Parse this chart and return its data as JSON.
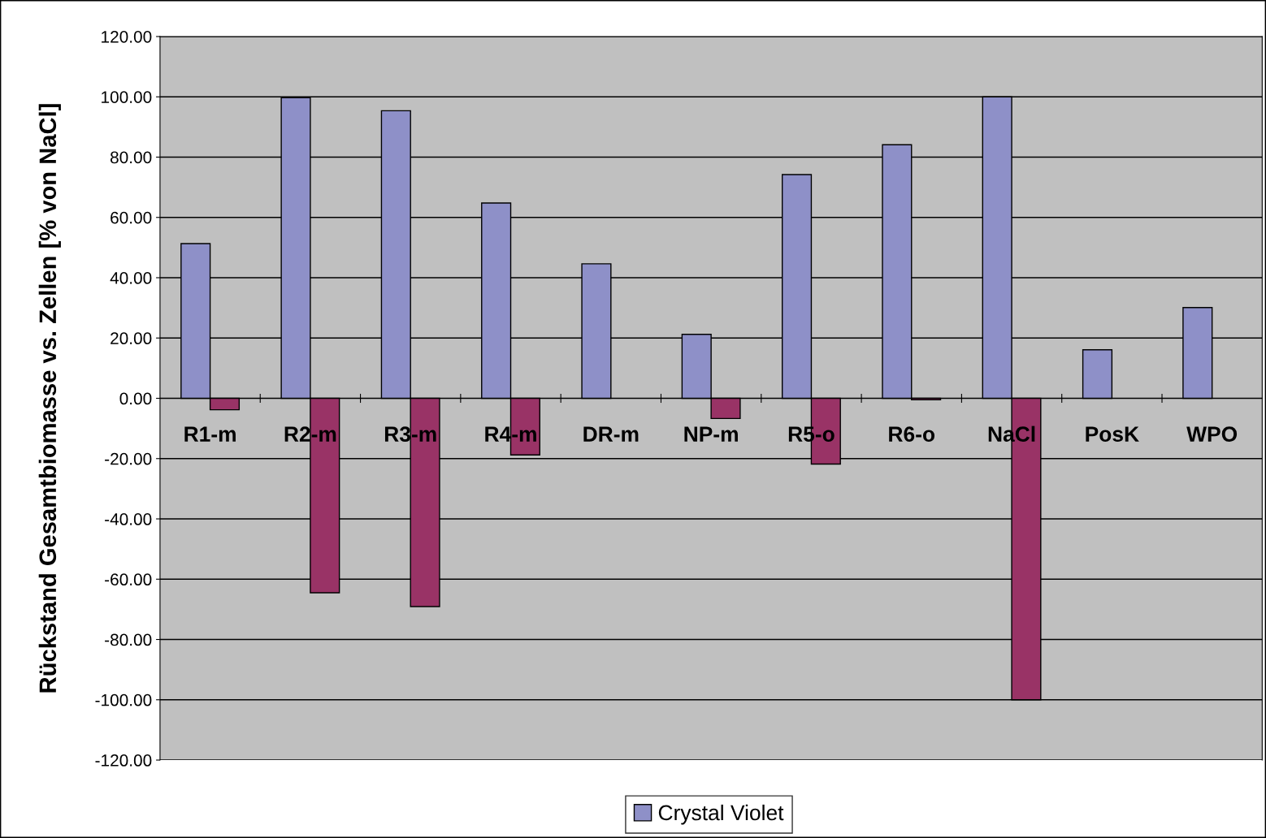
{
  "chart_data": {
    "type": "bar",
    "ylabel": "Rückstand Gesamtbiomasse vs. Zellen [% von NaCl]",
    "categories": [
      "R1-m",
      "R2-m",
      "R3-m",
      "R4-m",
      "DR-m",
      "NP-m",
      "R5-o",
      "R6-o",
      "NaCl",
      "PosK",
      "WPO"
    ],
    "series": [
      {
        "name": "Crystal Violet",
        "color": "#8e90c8",
        "values": [
          51.3,
          99.7,
          95.4,
          64.8,
          44.6,
          21.2,
          74.2,
          84.1,
          100,
          16.1,
          30.1
        ]
      },
      {
        "color": "#993366",
        "values": [
          -3.8,
          -64.5,
          -69.1,
          -18.8,
          null,
          -6.7,
          -21.8,
          -0.5,
          -100,
          null,
          null
        ]
      }
    ],
    "ylim": [
      -120,
      120
    ],
    "yticks": [
      {
        "value": -120,
        "label": "-120.00"
      },
      {
        "value": -100,
        "label": "-100.00"
      },
      {
        "value": -80,
        "label": "-80.00"
      },
      {
        "value": -60,
        "label": "-60.00"
      },
      {
        "value": -40,
        "label": "-40.00"
      },
      {
        "value": -20,
        "label": "-20.00"
      },
      {
        "value": 0,
        "label": "0.00"
      },
      {
        "value": 20,
        "label": "20.00"
      },
      {
        "value": 40,
        "label": "40.00"
      },
      {
        "value": 60,
        "label": "60.00"
      },
      {
        "value": 80,
        "label": "80.00"
      },
      {
        "value": 100,
        "label": "100.00"
      },
      {
        "value": 120,
        "label": "120.00"
      }
    ],
    "grid": "y",
    "legend": "bottom"
  }
}
